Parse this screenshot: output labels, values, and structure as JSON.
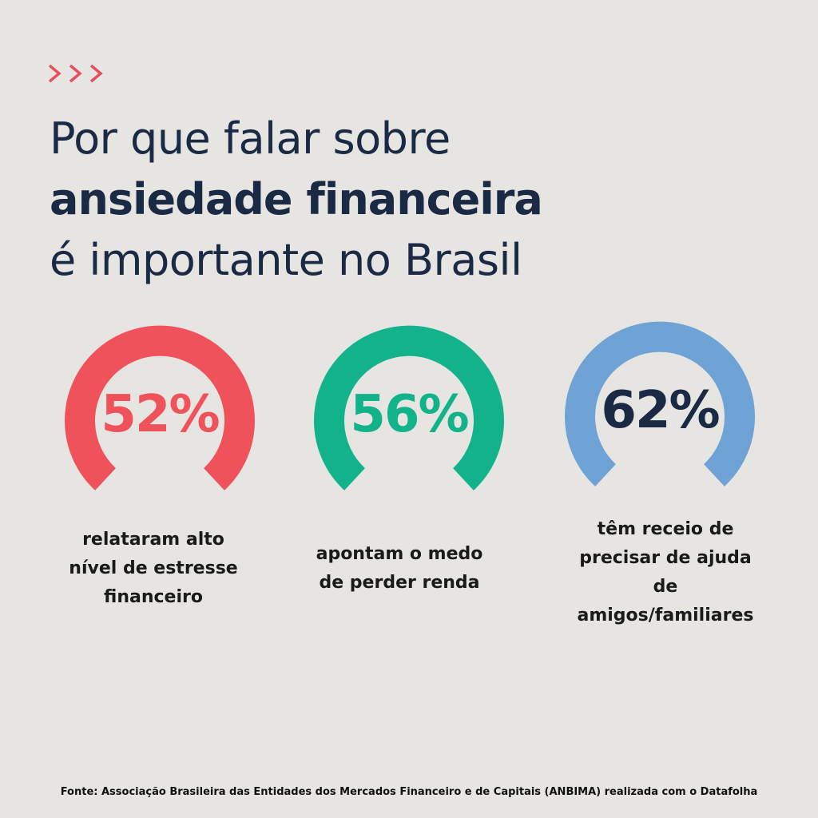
{
  "header": {
    "title_line1": "Por que falar sobre",
    "title_line2": "ansiedade financeira",
    "title_line3": "é importante no Brasil",
    "chevron_icon": "triple-chevron-right-icon",
    "chevron_color": "#e8505b"
  },
  "stats": [
    {
      "value_label": "52%",
      "value": 52,
      "color": "#f0525c",
      "caption_lines": [
        "relataram alto",
        "nível de estresse",
        "financeiro"
      ]
    },
    {
      "value_label": "56%",
      "value": 56,
      "color": "#12b38a",
      "caption_lines": [
        "apontam o medo",
        "de perder renda"
      ]
    },
    {
      "value_label": "62%",
      "value": 62,
      "color": "#6fa3d6",
      "text_color": "#1a2a44",
      "caption_lines": [
        "têm receio de",
        "precisar de ajuda",
        "de",
        "amigos/familiares"
      ]
    }
  ],
  "footer": {
    "source": "Fonte:  Associação Brasileira das Entidades dos Mercados Financeiro e de Capitais (ANBIMA) realizada com o Datafolha"
  }
}
